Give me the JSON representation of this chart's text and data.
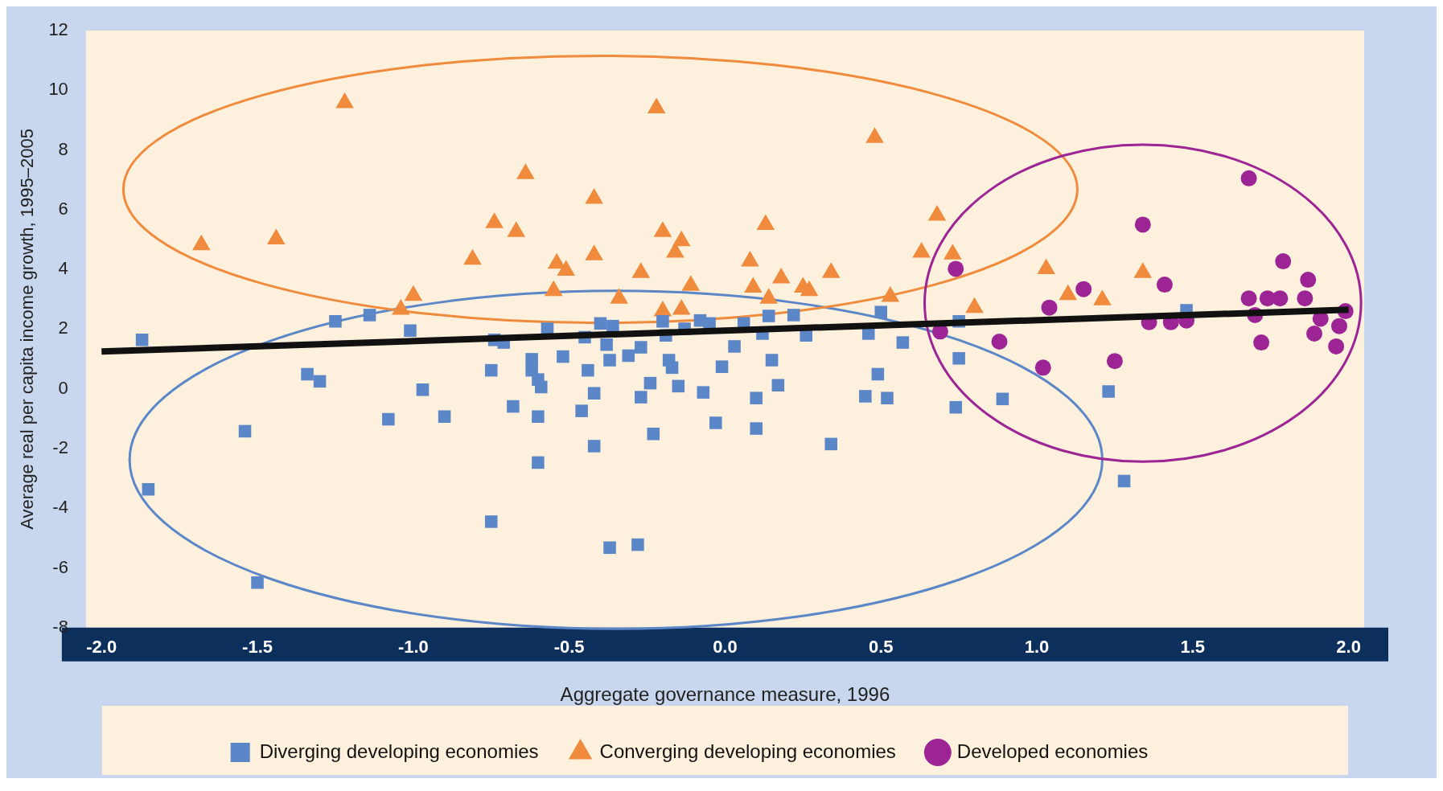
{
  "chart_data": {
    "type": "scatter",
    "xlabel": "Aggregate governance measure, 1996",
    "ylabel": "Average real per capita income growth, 1995–2005",
    "xlim": [
      -2.05,
      2.05
    ],
    "ylim": [
      -8,
      12
    ],
    "xticks": [
      {
        "value": -2,
        "label": "-2.0"
      },
      -1.5,
      {
        "value": -1,
        "label": "-1.0"
      },
      -0.5,
      {
        "value": 0,
        "label": "0.0"
      },
      0.5,
      {
        "value": 1,
        "label": "1.0"
      },
      1.5,
      {
        "value": 2,
        "label": "2.0"
      }
    ],
    "yticks": [
      -8,
      -6,
      -4,
      -2,
      0,
      2,
      4,
      6,
      8,
      10,
      12
    ],
    "grid": false,
    "legend": "bottom",
    "series": [
      {
        "name": "Diverging developing economies",
        "color": "#5b87c8",
        "marker": "square",
        "x": [
          -1.87,
          -1.85,
          -1.54,
          -1.5,
          -1.34,
          -1.3,
          -1.25,
          -1.14,
          -1.08,
          -1.01,
          -0.97,
          -0.9,
          -0.75,
          -0.74,
          -0.75,
          -0.71,
          -0.68,
          -0.62,
          -0.62,
          -0.6,
          -0.59,
          -0.6,
          -0.6,
          -0.57,
          -0.52,
          -0.46,
          -0.45,
          -0.44,
          -0.42,
          -0.42,
          -0.4,
          -0.38,
          -0.37,
          -0.37,
          -0.36,
          -0.31,
          -0.28,
          -0.27,
          -0.27,
          -0.24,
          -0.23,
          -0.2,
          -0.19,
          -0.18,
          -0.17,
          -0.15,
          -0.13,
          -0.08,
          -0.07,
          -0.05,
          -0.03,
          -0.01,
          0.03,
          0.06,
          0.1,
          0.1,
          0.12,
          0.14,
          0.15,
          0.17,
          0.22,
          0.26,
          0.34,
          0.45,
          0.46,
          0.49,
          0.52,
          0.5,
          0.57,
          0.74,
          0.75,
          0.75,
          0.89,
          1.23,
          1.28,
          1.48
        ],
        "values": [
          1.64,
          -3.37,
          -1.42,
          -6.49,
          0.49,
          0.25,
          2.26,
          2.47,
          -1.02,
          1.95,
          -0.03,
          -0.93,
          0.62,
          1.64,
          -4.45,
          1.55,
          -0.59,
          0.99,
          0.62,
          0.31,
          0.06,
          -0.93,
          -2.47,
          2.01,
          1.08,
          -0.74,
          1.73,
          0.62,
          -0.15,
          -1.92,
          2.19,
          1.48,
          0.96,
          -5.32,
          2.1,
          1.11,
          -5.22,
          -0.28,
          1.39,
          0.19,
          -1.51,
          2.26,
          1.79,
          0.96,
          0.71,
          0.09,
          2.01,
          2.29,
          -0.12,
          2.19,
          -1.14,
          0.74,
          1.42,
          2.19,
          -0.31,
          -1.33,
          1.85,
          2.44,
          0.96,
          0.12,
          2.47,
          1.79,
          -1.85,
          -0.25,
          1.85,
          0.49,
          -0.31,
          2.57,
          1.55,
          -0.62,
          1.02,
          2.26,
          -0.34,
          -0.09,
          -3.09,
          2.63
        ]
      },
      {
        "name": "Converging developing economies",
        "color": "#f08a3c",
        "marker": "triangle",
        "x": [
          -1.68,
          -1.44,
          -1.22,
          -1.04,
          -1.0,
          -0.81,
          -0.74,
          -0.67,
          -0.64,
          -0.55,
          -0.54,
          -0.51,
          -0.42,
          -0.42,
          -0.34,
          -0.27,
          -0.22,
          -0.2,
          -0.16,
          -0.14,
          -0.2,
          -0.14,
          -0.11,
          0.08,
          0.09,
          0.13,
          0.14,
          0.18,
          0.25,
          0.27,
          0.34,
          0.48,
          0.53,
          0.63,
          0.68,
          0.73,
          0.8,
          1.03,
          1.1,
          1.21,
          1.34
        ],
        "values": [
          4.82,
          5.01,
          9.58,
          2.66,
          3.12,
          4.33,
          5.56,
          5.26,
          7.2,
          3.28,
          4.2,
          3.96,
          6.37,
          4.48,
          3.03,
          3.89,
          9.4,
          5.26,
          4.57,
          4.95,
          2.6,
          2.66,
          3.46,
          4.27,
          3.4,
          5.5,
          3.03,
          3.71,
          3.4,
          3.28,
          3.89,
          8.41,
          3.09,
          4.57,
          5.81,
          4.51,
          2.72,
          4.02,
          3.15,
          2.97,
          3.89
        ]
      },
      {
        "name": "Developed economies",
        "color": "#9c2494",
        "marker": "circle",
        "x": [
          0.74,
          0.69,
          0.88,
          1.02,
          1.04,
          1.15,
          1.25,
          1.34,
          1.36,
          1.41,
          1.43,
          1.48,
          1.68,
          1.68,
          1.7,
          1.72,
          1.74,
          1.78,
          1.79,
          1.87,
          1.86,
          1.89,
          1.91,
          1.96,
          1.97,
          1.99
        ],
        "values": [
          4.02,
          1.92,
          1.58,
          0.71,
          2.72,
          3.34,
          0.93,
          5.5,
          2.23,
          3.49,
          2.23,
          2.29,
          7.05,
          3.03,
          2.47,
          1.55,
          3.03,
          3.03,
          4.27,
          3.65,
          3.03,
          1.85,
          2.35,
          1.42,
          2.1,
          2.6
        ]
      },
      {
        "type": "line",
        "color": "#111111",
        "marker": "none",
        "x": [
          -2.0,
          2.0
        ],
        "values": [
          1.25,
          2.65
        ]
      }
    ]
  }
}
